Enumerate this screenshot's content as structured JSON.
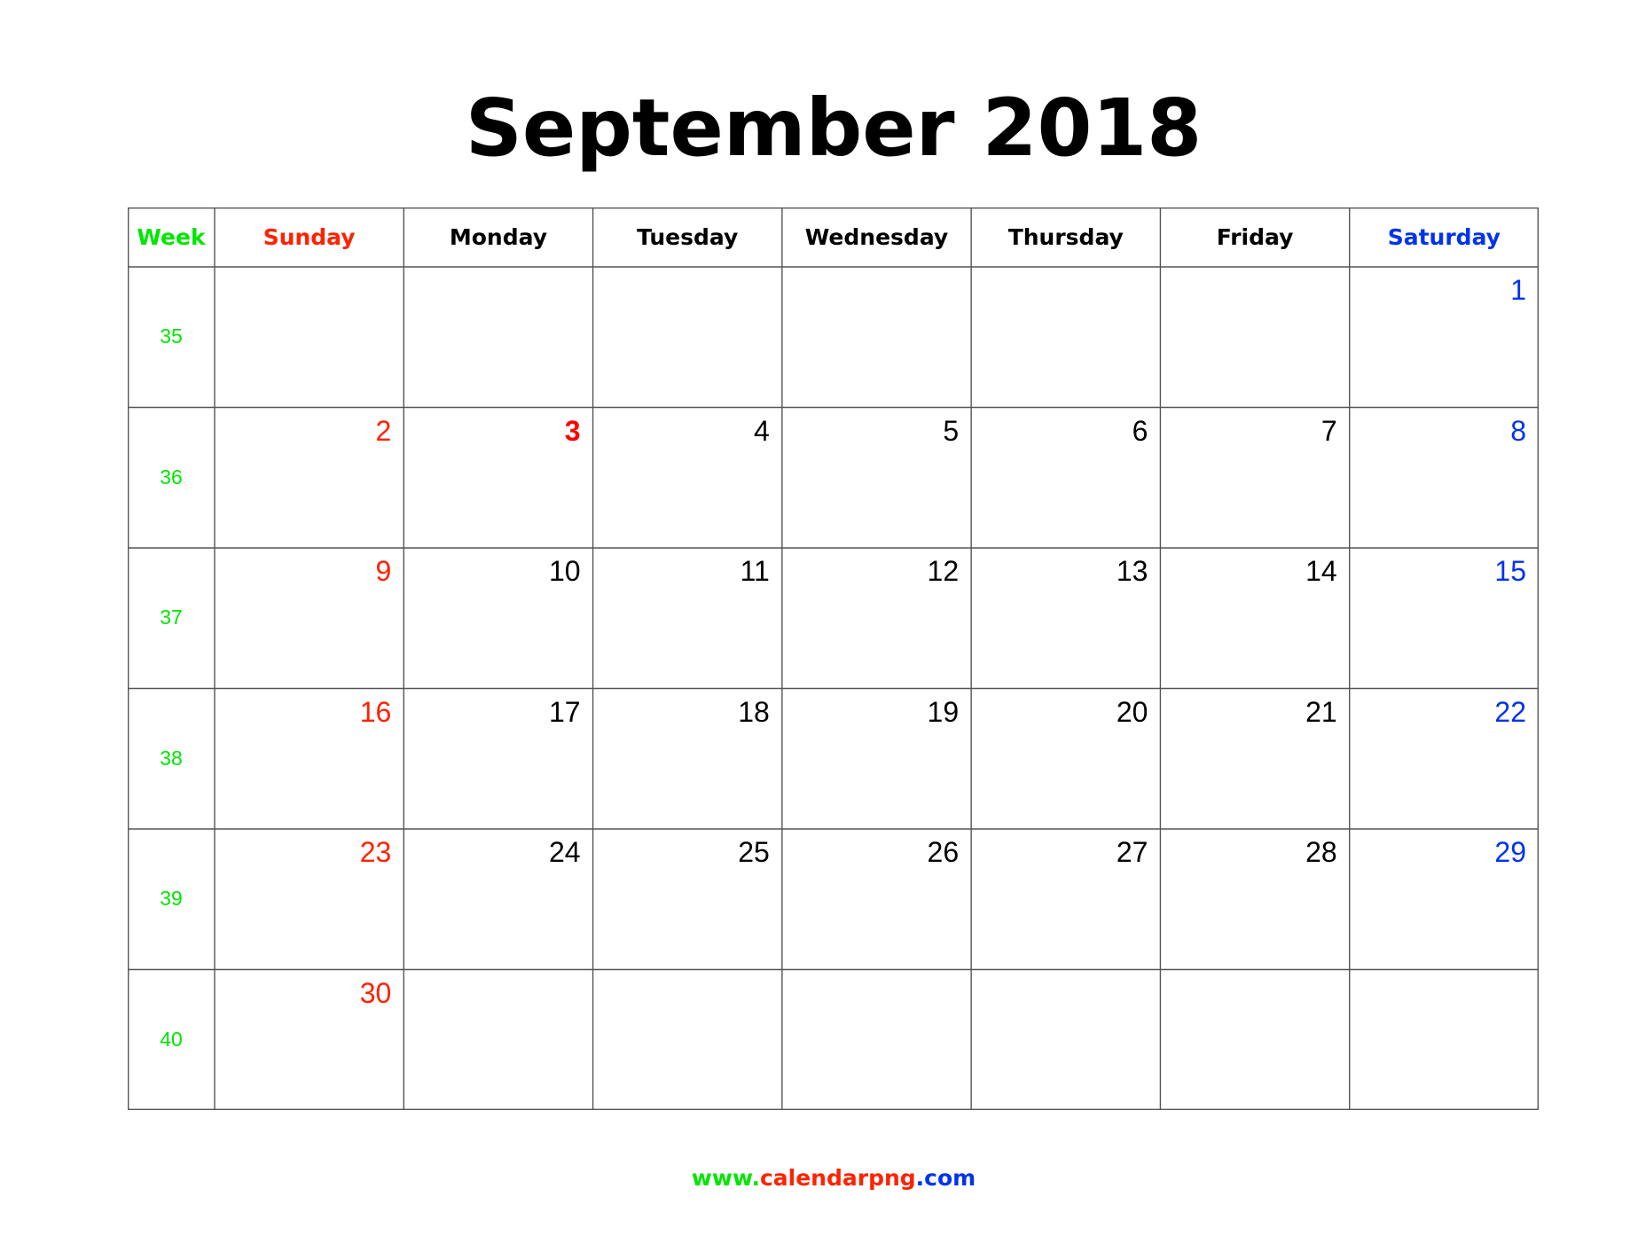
{
  "calendar": {
    "title": "September 2018",
    "headers": {
      "week": "Week",
      "days": [
        "Sunday",
        "Monday",
        "Tuesday",
        "Wednesday",
        "Thursday",
        "Friday",
        "Saturday"
      ]
    },
    "weeks": [
      {
        "week": "35",
        "days": [
          "",
          "",
          "",
          "",
          "",
          "",
          "1"
        ]
      },
      {
        "week": "36",
        "days": [
          "2",
          "3",
          "4",
          "5",
          "6",
          "7",
          "8"
        ]
      },
      {
        "week": "37",
        "days": [
          "9",
          "10",
          "11",
          "12",
          "13",
          "14",
          "15"
        ]
      },
      {
        "week": "38",
        "days": [
          "16",
          "17",
          "18",
          "19",
          "20",
          "21",
          "22"
        ]
      },
      {
        "week": "39",
        "days": [
          "23",
          "24",
          "25",
          "26",
          "27",
          "28",
          "29"
        ]
      },
      {
        "week": "40",
        "days": [
          "30",
          "",
          "",
          "",
          "",
          "",
          ""
        ]
      }
    ],
    "highlighted_dates": [
      "3"
    ]
  },
  "footer": {
    "www": "www.",
    "domain": "calendarpng",
    "tld": ".com"
  },
  "colors": {
    "week": "#00e600",
    "sunday": "#ff2200",
    "saturday": "#0033ee",
    "highlight": "#ff0000",
    "text": "#000000",
    "grid": "#555555"
  }
}
